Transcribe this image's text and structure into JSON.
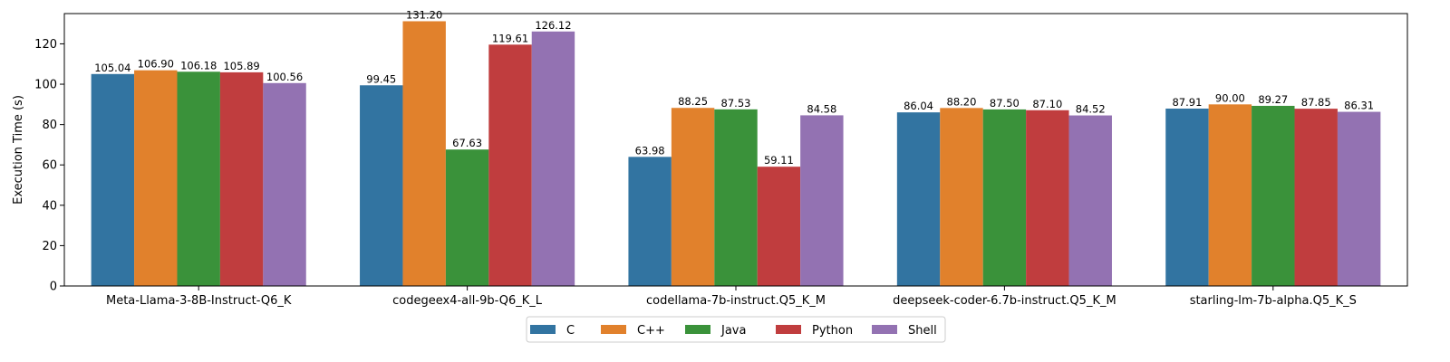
{
  "chart_data": {
    "type": "bar",
    "title": "",
    "xlabel": "",
    "ylabel": "Execution Time (s)",
    "ylim": [
      0,
      135
    ],
    "yticks": [
      0,
      20,
      40,
      60,
      80,
      100,
      120
    ],
    "grid": false,
    "legend_position": "bottom-center",
    "categories": [
      "Meta-Llama-3-8B-Instruct-Q6_K",
      "codegeex4-all-9b-Q6_K_L",
      "codellama-7b-instruct.Q5_K_M",
      "deepseek-coder-6.7b-instruct.Q5_K_M",
      "starling-lm-7b-alpha.Q5_K_S"
    ],
    "series": [
      {
        "name": "C",
        "color": "#3274a1",
        "values": [
          105.04,
          99.45,
          63.98,
          86.04,
          87.91
        ]
      },
      {
        "name": "C++",
        "color": "#e1812c",
        "values": [
          106.9,
          131.2,
          88.25,
          88.2,
          90.0
        ]
      },
      {
        "name": "Java",
        "color": "#3a923a",
        "values": [
          106.18,
          67.63,
          87.53,
          87.5,
          89.27
        ]
      },
      {
        "name": "Python",
        "color": "#c03d3e",
        "values": [
          105.89,
          119.61,
          59.11,
          87.1,
          87.85
        ]
      },
      {
        "name": "Shell",
        "color": "#9372b2",
        "values": [
          100.56,
          126.12,
          84.58,
          84.52,
          86.31
        ]
      }
    ],
    "data_labels": [
      [
        "105.04",
        "99.45",
        "63.98",
        "86.04",
        "87.91"
      ],
      [
        "106.90",
        "131.20",
        "88.25",
        "88.20",
        "90.00"
      ],
      [
        "106.18",
        "67.63",
        "87.53",
        "87.50",
        "89.27"
      ],
      [
        "105.89",
        "119.61",
        "59.11",
        "87.10",
        "87.85"
      ],
      [
        "100.56",
        "126.12",
        "84.58",
        "84.52",
        "86.31"
      ]
    ]
  }
}
